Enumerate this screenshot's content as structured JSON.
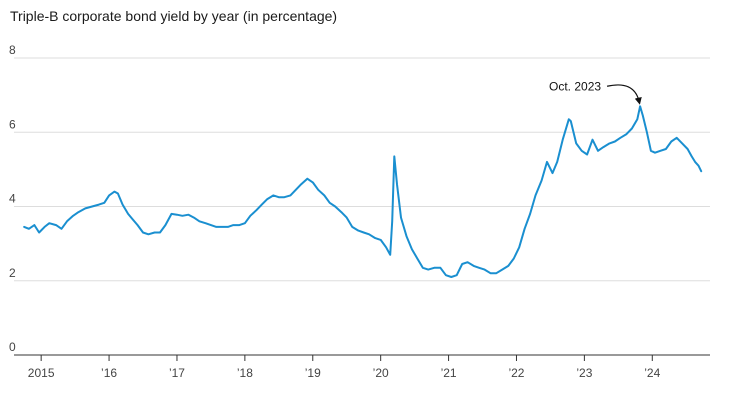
{
  "chart_data": {
    "type": "line",
    "title": "Triple-B corporate bond yield by year (in percentage)",
    "xlabel": "",
    "ylabel": "",
    "ylim": [
      0,
      8
    ],
    "yticks": [
      0,
      2,
      4,
      6,
      8
    ],
    "x_tick_labels": [
      "2015",
      "’16",
      "’17",
      "’18",
      "’19",
      "’20",
      "’21",
      "’22",
      "’23",
      "’24"
    ],
    "x_tick_positions": [
      2015,
      2016,
      2017,
      2018,
      2019,
      2020,
      2021,
      2022,
      2023,
      2024
    ],
    "xlim": [
      2014.6,
      2024.85
    ],
    "grid": true,
    "legend": "none",
    "line_color": "#1a8fd0",
    "annotation": {
      "label": "Oct. 2023",
      "x": 2023.82,
      "y": 6.7
    },
    "series": [
      {
        "values": [
          [
            2014.75,
            3.45
          ],
          [
            2014.82,
            3.4
          ],
          [
            2014.9,
            3.5
          ],
          [
            2014.97,
            3.3
          ],
          [
            2015.05,
            3.45
          ],
          [
            2015.12,
            3.55
          ],
          [
            2015.22,
            3.5
          ],
          [
            2015.3,
            3.4
          ],
          [
            2015.38,
            3.6
          ],
          [
            2015.47,
            3.75
          ],
          [
            2015.55,
            3.85
          ],
          [
            2015.65,
            3.95
          ],
          [
            2015.75,
            4.0
          ],
          [
            2015.85,
            4.05
          ],
          [
            2015.93,
            4.1
          ],
          [
            2016.0,
            4.3
          ],
          [
            2016.08,
            4.4
          ],
          [
            2016.13,
            4.35
          ],
          [
            2016.2,
            4.05
          ],
          [
            2016.28,
            3.8
          ],
          [
            2016.35,
            3.65
          ],
          [
            2016.42,
            3.5
          ],
          [
            2016.5,
            3.3
          ],
          [
            2016.58,
            3.25
          ],
          [
            2016.67,
            3.3
          ],
          [
            2016.75,
            3.3
          ],
          [
            2016.83,
            3.5
          ],
          [
            2016.92,
            3.8
          ],
          [
            2017.0,
            3.78
          ],
          [
            2017.08,
            3.75
          ],
          [
            2017.17,
            3.78
          ],
          [
            2017.25,
            3.7
          ],
          [
            2017.33,
            3.6
          ],
          [
            2017.42,
            3.55
          ],
          [
            2017.5,
            3.5
          ],
          [
            2017.58,
            3.45
          ],
          [
            2017.67,
            3.45
          ],
          [
            2017.75,
            3.45
          ],
          [
            2017.83,
            3.5
          ],
          [
            2017.92,
            3.5
          ],
          [
            2018.0,
            3.55
          ],
          [
            2018.08,
            3.75
          ],
          [
            2018.17,
            3.9
          ],
          [
            2018.25,
            4.05
          ],
          [
            2018.33,
            4.2
          ],
          [
            2018.42,
            4.3
          ],
          [
            2018.5,
            4.25
          ],
          [
            2018.58,
            4.25
          ],
          [
            2018.67,
            4.3
          ],
          [
            2018.75,
            4.45
          ],
          [
            2018.83,
            4.6
          ],
          [
            2018.92,
            4.75
          ],
          [
            2019.0,
            4.65
          ],
          [
            2019.08,
            4.45
          ],
          [
            2019.17,
            4.3
          ],
          [
            2019.25,
            4.1
          ],
          [
            2019.33,
            4.0
          ],
          [
            2019.42,
            3.85
          ],
          [
            2019.5,
            3.7
          ],
          [
            2019.58,
            3.45
          ],
          [
            2019.67,
            3.35
          ],
          [
            2019.75,
            3.3
          ],
          [
            2019.83,
            3.25
          ],
          [
            2019.92,
            3.15
          ],
          [
            2020.0,
            3.1
          ],
          [
            2020.08,
            2.9
          ],
          [
            2020.14,
            2.7
          ],
          [
            2020.17,
            3.6
          ],
          [
            2020.2,
            5.35
          ],
          [
            2020.24,
            4.6
          ],
          [
            2020.3,
            3.7
          ],
          [
            2020.38,
            3.2
          ],
          [
            2020.46,
            2.85
          ],
          [
            2020.54,
            2.6
          ],
          [
            2020.62,
            2.35
          ],
          [
            2020.7,
            2.3
          ],
          [
            2020.79,
            2.35
          ],
          [
            2020.88,
            2.35
          ],
          [
            2020.96,
            2.15
          ],
          [
            2021.04,
            2.1
          ],
          [
            2021.12,
            2.15
          ],
          [
            2021.2,
            2.45
          ],
          [
            2021.28,
            2.5
          ],
          [
            2021.37,
            2.4
          ],
          [
            2021.45,
            2.35
          ],
          [
            2021.53,
            2.3
          ],
          [
            2021.62,
            2.2
          ],
          [
            2021.7,
            2.2
          ],
          [
            2021.79,
            2.3
          ],
          [
            2021.88,
            2.4
          ],
          [
            2021.96,
            2.6
          ],
          [
            2022.04,
            2.9
          ],
          [
            2022.12,
            3.4
          ],
          [
            2022.2,
            3.8
          ],
          [
            2022.28,
            4.3
          ],
          [
            2022.37,
            4.7
          ],
          [
            2022.45,
            5.2
          ],
          [
            2022.53,
            4.9
          ],
          [
            2022.6,
            5.2
          ],
          [
            2022.68,
            5.8
          ],
          [
            2022.77,
            6.35
          ],
          [
            2022.8,
            6.3
          ],
          [
            2022.88,
            5.7
          ],
          [
            2022.96,
            5.5
          ],
          [
            2023.04,
            5.4
          ],
          [
            2023.12,
            5.8
          ],
          [
            2023.2,
            5.5
          ],
          [
            2023.28,
            5.6
          ],
          [
            2023.37,
            5.7
          ],
          [
            2023.45,
            5.75
          ],
          [
            2023.53,
            5.85
          ],
          [
            2023.62,
            5.95
          ],
          [
            2023.7,
            6.1
          ],
          [
            2023.78,
            6.35
          ],
          [
            2023.82,
            6.7
          ],
          [
            2023.86,
            6.45
          ],
          [
            2023.92,
            6.0
          ],
          [
            2023.98,
            5.5
          ],
          [
            2024.04,
            5.45
          ],
          [
            2024.12,
            5.5
          ],
          [
            2024.2,
            5.55
          ],
          [
            2024.28,
            5.75
          ],
          [
            2024.36,
            5.85
          ],
          [
            2024.44,
            5.7
          ],
          [
            2024.52,
            5.55
          ],
          [
            2024.58,
            5.35
          ],
          [
            2024.63,
            5.2
          ],
          [
            2024.68,
            5.1
          ],
          [
            2024.72,
            4.95
          ]
        ]
      }
    ]
  }
}
